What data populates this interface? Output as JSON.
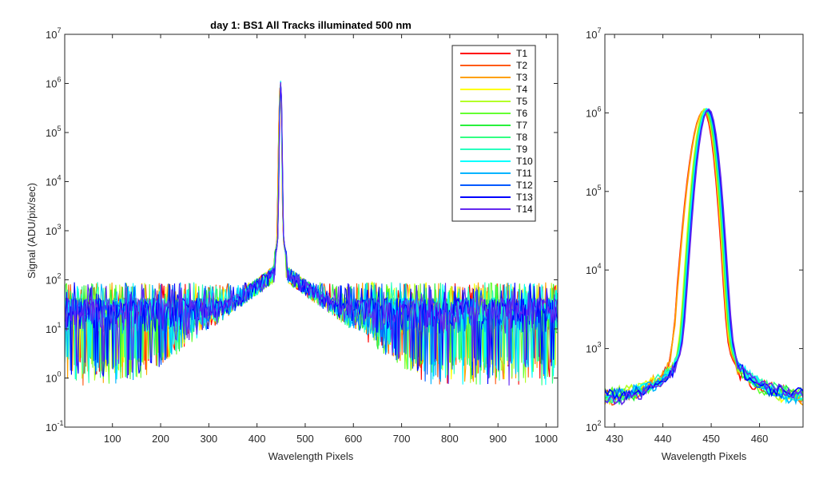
{
  "figure": {
    "title": "day 1: BS1   All Tracks illuminated   500 nm"
  },
  "chart_data": [
    {
      "type": "line",
      "panel": "full",
      "title": "day 1: BS1   All Tracks illuminated   500 nm",
      "xlabel": "Wavelength Pixels",
      "ylabel": "Signal (ADU/pix/sec)",
      "xlim": [
        1,
        1024
      ],
      "ylim": [
        0.1,
        10000000
      ],
      "yscale": "log",
      "xticks": [
        100,
        200,
        300,
        400,
        500,
        600,
        700,
        800,
        900,
        1000
      ],
      "yticks": [
        {
          "value": 0.1,
          "base": "10",
          "exp": "-1"
        },
        {
          "value": 1,
          "base": "10",
          "exp": "0"
        },
        {
          "value": 10,
          "base": "10",
          "exp": "1"
        },
        {
          "value": 100,
          "base": "10",
          "exp": "2"
        },
        {
          "value": 1000,
          "base": "10",
          "exp": "3"
        },
        {
          "value": 10000,
          "base": "10",
          "exp": "4"
        },
        {
          "value": 100000,
          "base": "10",
          "exp": "5"
        },
        {
          "value": 1000000,
          "base": "10",
          "exp": "6"
        },
        {
          "value": 10000000,
          "base": "10",
          "exp": "7"
        }
      ],
      "grid": false,
      "legend_position": "top-right",
      "peak": {
        "x": 449,
        "y": 1100000
      },
      "noise_floor_range": [
        0.7,
        90
      ]
    },
    {
      "type": "line",
      "panel": "zoom",
      "title": "",
      "xlabel": "Wavelength Pixels",
      "ylabel": "",
      "xlim": [
        428,
        469
      ],
      "ylim": [
        100,
        10000000
      ],
      "yscale": "log",
      "xticks": [
        430,
        440,
        450,
        460
      ],
      "yticks": [
        {
          "value": 100,
          "base": "10",
          "exp": "2"
        },
        {
          "value": 1000,
          "base": "10",
          "exp": "3"
        },
        {
          "value": 10000,
          "base": "10",
          "exp": "4"
        },
        {
          "value": 100000,
          "base": "10",
          "exp": "5"
        },
        {
          "value": 1000000,
          "base": "10",
          "exp": "6"
        },
        {
          "value": 10000000,
          "base": "10",
          "exp": "7"
        }
      ],
      "grid": false,
      "peak": {
        "x": 449,
        "y": 1100000
      }
    }
  ],
  "series": [
    {
      "name": "T1",
      "color": "#ff0000"
    },
    {
      "name": "T2",
      "color": "#ff5a14"
    },
    {
      "name": "T3",
      "color": "#ffa000"
    },
    {
      "name": "T4",
      "color": "#ffff00"
    },
    {
      "name": "T5",
      "color": "#b4ff28"
    },
    {
      "name": "T6",
      "color": "#64ff32"
    },
    {
      "name": "T7",
      "color": "#28f03c"
    },
    {
      "name": "T8",
      "color": "#32ff82"
    },
    {
      "name": "T9",
      "color": "#28ffbe"
    },
    {
      "name": "T10",
      "color": "#00ffff"
    },
    {
      "name": "T11",
      "color": "#00b4ff"
    },
    {
      "name": "T12",
      "color": "#005aff"
    },
    {
      "name": "T13",
      "color": "#0000ff"
    },
    {
      "name": "T14",
      "color": "#6428f0"
    }
  ]
}
